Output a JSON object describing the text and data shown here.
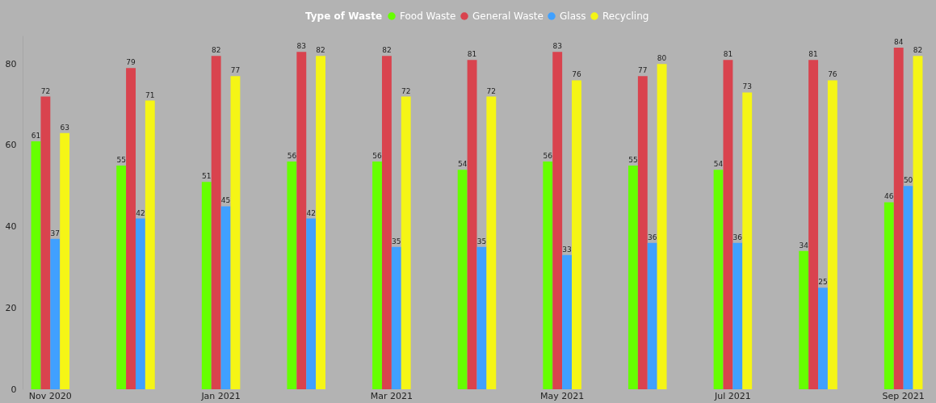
{
  "chart_data": {
    "type": "bar",
    "legend_title": "Type of Waste",
    "categories": [
      "Nov 2020",
      null,
      "Jan 2021",
      null,
      "Mar 2021",
      null,
      "May 2021",
      null,
      "Jul 2021",
      null,
      "Sep 2021"
    ],
    "series": [
      {
        "name": "Food Waste",
        "color": "#66ff00",
        "values": [
          61,
          55,
          51,
          56,
          56,
          54,
          56,
          55,
          54,
          34,
          46
        ]
      },
      {
        "name": "General Waste",
        "color": "#d9434e",
        "values": [
          72,
          79,
          82,
          83,
          82,
          81,
          83,
          77,
          81,
          81,
          84
        ]
      },
      {
        "name": "Glass",
        "color": "#40a0ff",
        "values": [
          37,
          42,
          45,
          42,
          35,
          35,
          33,
          36,
          36,
          25,
          50
        ]
      },
      {
        "name": "Recycling",
        "color": "#f5f516",
        "values": [
          63,
          71,
          77,
          82,
          72,
          72,
          76,
          80,
          73,
          76,
          82
        ]
      }
    ],
    "ylim": [
      0,
      87
    ],
    "yticks": [
      0,
      20,
      40,
      60,
      80
    ],
    "grid": false,
    "legend": "top",
    "data_labels": true
  }
}
